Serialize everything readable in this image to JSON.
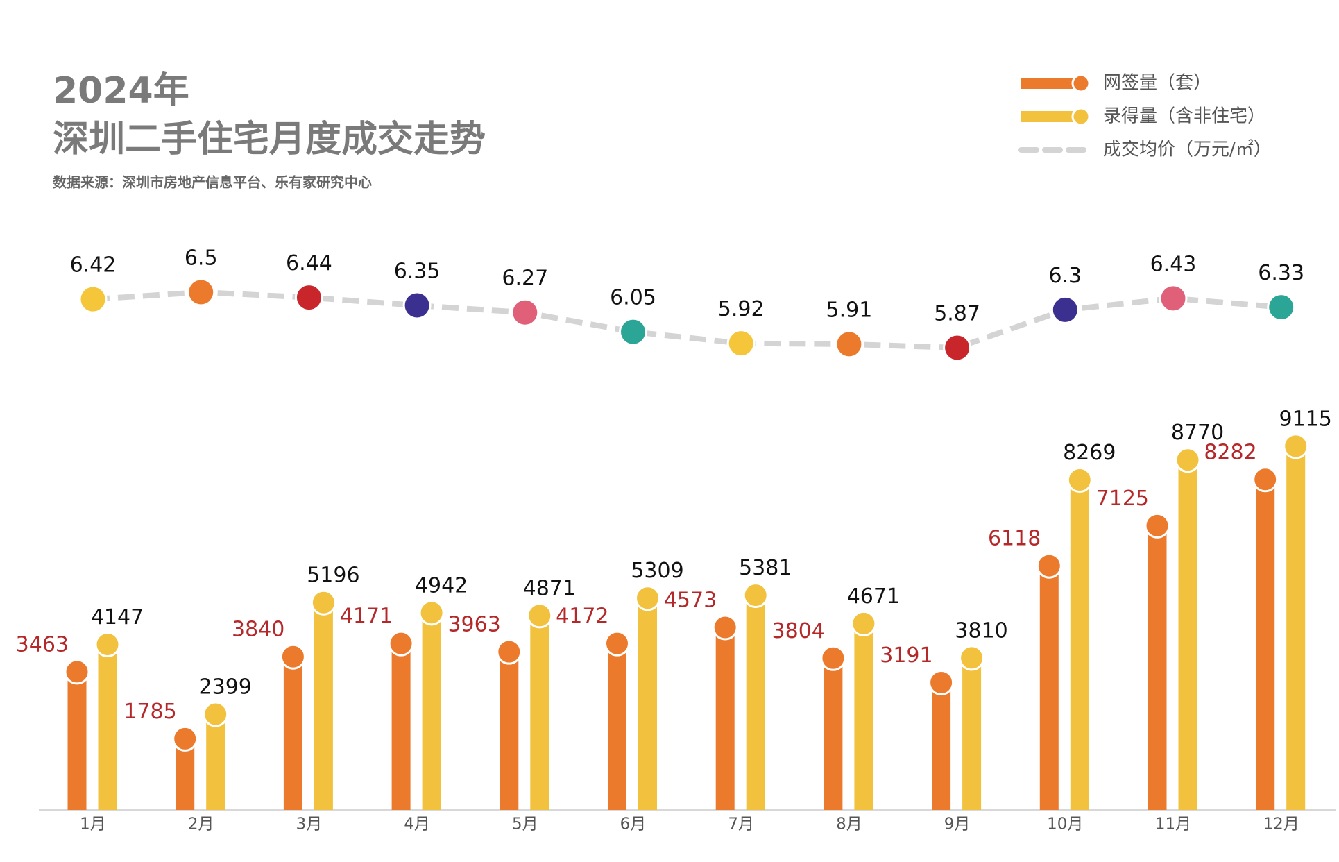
{
  "chart_data": {
    "type": "bar",
    "title": [
      "2024年",
      "深圳二手住宅月度成交走势"
    ],
    "source": "数据来源：深圳市房地产信息平台、乐有家研究中心",
    "categories": [
      "1月",
      "2月",
      "3月",
      "4月",
      "5月",
      "6月",
      "7月",
      "8月",
      "9月",
      "10月",
      "11月",
      "12月"
    ],
    "series": [
      {
        "name": "网签量（套）",
        "type": "bar",
        "color": "#ec7a2c",
        "label_color": "#b5282a",
        "values": [
          3463,
          1785,
          3840,
          4171,
          3963,
          4172,
          4573,
          3804,
          3191,
          6118,
          7125,
          8282
        ]
      },
      {
        "name": "录得量（含非住宅）",
        "type": "bar",
        "color": "#f2c23e",
        "label_color": "#111111",
        "values": [
          4147,
          2399,
          5196,
          4942,
          4871,
          5309,
          5381,
          4671,
          3810,
          8269,
          8770,
          9115
        ]
      },
      {
        "name": "成交均价（万元/㎡）",
        "type": "line",
        "color": "#d4d4d4",
        "label_color": "#111111",
        "point_colors": [
          "#f5c63a",
          "#ec7a2c",
          "#c8262a",
          "#3b2f8f",
          "#e0607a",
          "#2aa596",
          "#f5c63a",
          "#ec7a2c",
          "#c8262a",
          "#3b2f8f",
          "#e0607a",
          "#2aa596"
        ],
        "values": [
          6.42,
          6.5,
          6.44,
          6.35,
          6.27,
          6.05,
          5.92,
          5.91,
          5.87,
          6.3,
          6.43,
          6.33
        ]
      }
    ]
  }
}
